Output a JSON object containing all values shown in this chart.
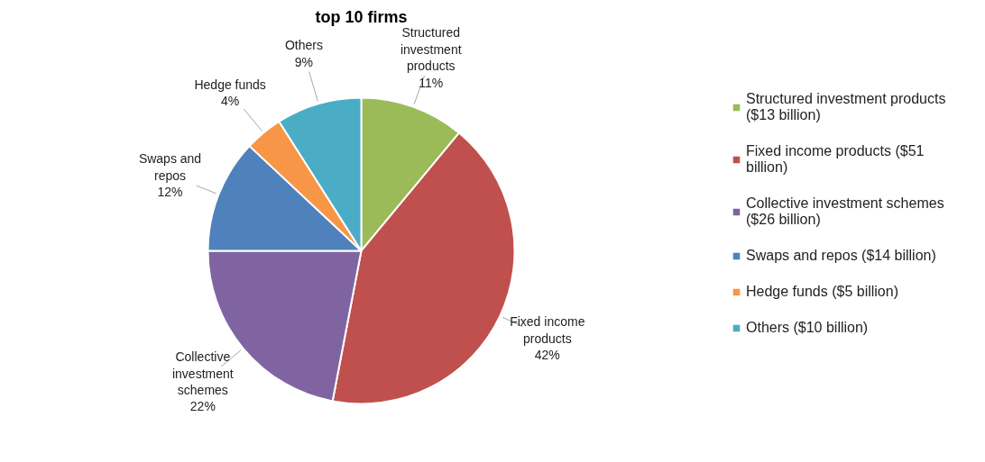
{
  "chart_data": {
    "type": "pie",
    "title": "top 10 firms",
    "categories": [
      "Structured investment products",
      "Fixed income products",
      "Collective investment schemes",
      "Swaps and repos",
      "Hedge funds",
      "Others"
    ],
    "values": [
      11,
      42,
      22,
      12,
      4,
      9
    ],
    "value_labels": [
      "11%",
      "42%",
      "22%",
      "12%",
      "4%",
      "9%"
    ],
    "colors": [
      "#9bbb59",
      "#c0504d",
      "#8064a2",
      "#4f81bd",
      "#f79646",
      "#4bacc6"
    ],
    "annotations": [
      "Structured investment products ($13 billion)",
      "Fixed income products ($51 billion)",
      "Collective investment schemes ($26 billion)",
      "Swaps and repos ($14 billion)",
      "Hedge funds ($5 billion)",
      "Others ($10 billion)"
    ],
    "legend": "right"
  }
}
